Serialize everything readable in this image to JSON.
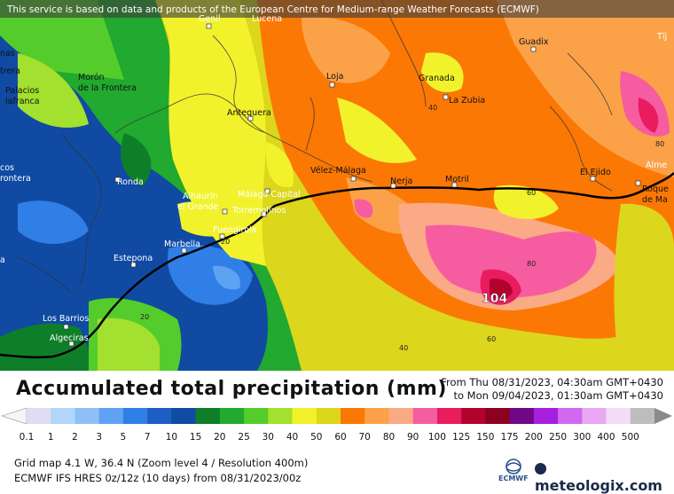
{
  "banner": "This service is based on data and products of the European Centre for Medium-range Weather Forecasts (ECMWF)",
  "title": "Accumulated total precipitation (mm)",
  "period": {
    "from": "From Thu 08/31/2023, 04:30am GMT+0430",
    "to": "to Mon 09/04/2023, 01:30am GMT+0430"
  },
  "legend": {
    "labels": [
      "0.1",
      "1",
      "2",
      "3",
      "5",
      "7",
      "10",
      "15",
      "20",
      "25",
      "30",
      "40",
      "50",
      "60",
      "70",
      "80",
      "90",
      "100",
      "125",
      "150",
      "175",
      "200",
      "250",
      "300",
      "400",
      "500"
    ],
    "colors": [
      "#e0dcf3",
      "#b3d5fb",
      "#8ec0f7",
      "#5ea2f2",
      "#2f7fe6",
      "#1d5ec3",
      "#104aa3",
      "#0e7f28",
      "#22a92f",
      "#54cc2c",
      "#a3e02f",
      "#f2f22c",
      "#dcd61c",
      "#fb7805",
      "#fba248",
      "#fbaa86",
      "#f65da0",
      "#e81c5f",
      "#b2032c",
      "#8c0021",
      "#6e0888",
      "#a51fdd",
      "#d268ef",
      "#e8a8f4",
      "#f3ddf9",
      "#bdbdbd"
    ]
  },
  "grid_info": "Grid map 4.1 W, 36.4 N (Zoom level 4 / Resolution 400m)",
  "model_info": "ECMWF IFS HRES 0z/12z (10 days) from  08/31/2023/00z",
  "logos": {
    "ecmwf": "ECMWF",
    "meteologix": "meteologix.com"
  },
  "cities": [
    {
      "name": "Genil"
    },
    {
      "name": "Lucena"
    },
    {
      "name": "Guadix"
    },
    {
      "name": "Tíj"
    },
    {
      "name": "trera"
    },
    {
      "name": "Morón"
    },
    {
      "name": "de la Frontera"
    },
    {
      "name": "Palacios"
    },
    {
      "name": "lafranca"
    },
    {
      "name": "Loja"
    },
    {
      "name": "Granada"
    },
    {
      "name": "La Zubia"
    },
    {
      "name": "Antequera"
    },
    {
      "name": "cos"
    },
    {
      "name": "rontera"
    },
    {
      "name": "Ronda"
    },
    {
      "name": "Vélez-Málaga"
    },
    {
      "name": "Nerja"
    },
    {
      "name": "Motril"
    },
    {
      "name": "El Ejido"
    },
    {
      "name": "Alme"
    },
    {
      "name": "Roque"
    },
    {
      "name": "de Ma"
    },
    {
      "name": "Alhaurín"
    },
    {
      "name": "el Grande"
    },
    {
      "name": "Málaga Capital"
    },
    {
      "name": "Torremolinos"
    },
    {
      "name": "Fuengirola"
    },
    {
      "name": "Marbella"
    },
    {
      "name": "Estepona"
    },
    {
      "name": "Los Barrios"
    },
    {
      "name": "Algeciras"
    },
    {
      "name": "nas"
    },
    {
      "name": "a"
    }
  ],
  "contour_labels": [
    "40",
    "80",
    "60",
    "80",
    "104",
    "60",
    "40",
    "20",
    "20"
  ]
}
